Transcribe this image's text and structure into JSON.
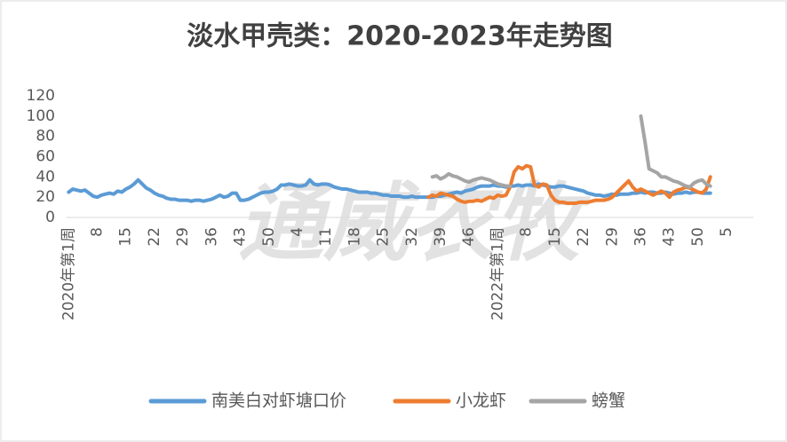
{
  "chart_data": {
    "type": "line",
    "title": "淡水甲壳类：2020-2023年走势图",
    "watermark": "通威农牧",
    "categories": [
      "2020年第1周",
      null,
      null,
      null,
      null,
      null,
      null,
      "8",
      null,
      null,
      null,
      null,
      null,
      null,
      "15",
      null,
      null,
      null,
      null,
      null,
      null,
      "22",
      null,
      null,
      null,
      null,
      null,
      null,
      "29",
      null,
      null,
      null,
      null,
      null,
      null,
      "36",
      null,
      null,
      null,
      null,
      null,
      null,
      "43",
      null,
      null,
      null,
      null,
      null,
      null,
      "50",
      null,
      null,
      null,
      null,
      null,
      null,
      "4",
      null,
      null,
      null,
      null,
      null,
      null,
      "11",
      null,
      null,
      null,
      null,
      null,
      null,
      "18",
      null,
      null,
      null,
      null,
      null,
      null,
      "25",
      null,
      null,
      null,
      null,
      null,
      null,
      "32",
      null,
      null,
      null,
      null,
      null,
      null,
      "39",
      null,
      null,
      null,
      null,
      null,
      null,
      "46",
      null,
      null,
      null,
      null,
      null,
      null,
      "2022年第1周",
      null,
      null,
      null,
      null,
      null,
      null,
      "8",
      null,
      null,
      null,
      null,
      null,
      null,
      "15",
      null,
      null,
      null,
      null,
      null,
      null,
      "22",
      null,
      null,
      null,
      null,
      null,
      null,
      "29",
      null,
      null,
      null,
      null,
      null,
      null,
      "36",
      null,
      null,
      null,
      null,
      null,
      null,
      "43",
      null,
      null,
      null,
      null,
      null,
      null,
      "50",
      null,
      null,
      null,
      null,
      null,
      null,
      "5",
      null,
      null,
      null,
      null,
      null,
      null
    ],
    "series": [
      {
        "name": "南美白对虾塘口价",
        "color": "#5b9bd5",
        "values": [
          25,
          28,
          27,
          26,
          27,
          24,
          21,
          20,
          22,
          23,
          24,
          23,
          26,
          25,
          28,
          30,
          33,
          37,
          33,
          29,
          27,
          24,
          22,
          21,
          19,
          18,
          18,
          17,
          17,
          17,
          16,
          17,
          17,
          16,
          17,
          18,
          20,
          22,
          20,
          21,
          24,
          24,
          17,
          17,
          18,
          20,
          22,
          24,
          25,
          25,
          26,
          28,
          32,
          32,
          33,
          32,
          31,
          31,
          32,
          37,
          33,
          32,
          33,
          33,
          32,
          30,
          29,
          28,
          28,
          27,
          26,
          25,
          25,
          25,
          24,
          24,
          23,
          22,
          22,
          21,
          21,
          21,
          20,
          20,
          21,
          20,
          20,
          20,
          20,
          20,
          21,
          21,
          22,
          23,
          24,
          25,
          24,
          26,
          27,
          28,
          30,
          31,
          31,
          31,
          32,
          31,
          31,
          30,
          31,
          31,
          32,
          31,
          32,
          32,
          31,
          33,
          32,
          31,
          30,
          30,
          31,
          31,
          30,
          29,
          28,
          27,
          26,
          24,
          23,
          22,
          22,
          21,
          22,
          23,
          22,
          23,
          23,
          23,
          24,
          24,
          25,
          24,
          25,
          25,
          24,
          24,
          25,
          24,
          23,
          24,
          24,
          25,
          24,
          25,
          25,
          24,
          24,
          24,
          null,
          null,
          null,
          null,
          null,
          null,
          null,
          null,
          null,
          null
        ]
      },
      {
        "name": "小龙虾",
        "color": "#ed7d31",
        "values": [
          null,
          null,
          null,
          null,
          null,
          null,
          null,
          null,
          null,
          null,
          null,
          null,
          null,
          null,
          null,
          null,
          null,
          null,
          null,
          null,
          null,
          null,
          null,
          null,
          null,
          null,
          null,
          null,
          null,
          null,
          null,
          null,
          null,
          null,
          null,
          null,
          null,
          null,
          null,
          null,
          null,
          null,
          null,
          null,
          null,
          null,
          null,
          null,
          null,
          null,
          null,
          null,
          null,
          null,
          null,
          null,
          null,
          null,
          null,
          null,
          null,
          null,
          null,
          null,
          null,
          null,
          null,
          null,
          null,
          null,
          null,
          null,
          null,
          null,
          null,
          null,
          null,
          null,
          null,
          null,
          null,
          null,
          null,
          null,
          null,
          null,
          null,
          null,
          20,
          22,
          21,
          24,
          23,
          22,
          21,
          18,
          16,
          15,
          16,
          16,
          17,
          16,
          18,
          20,
          19,
          22,
          21,
          22,
          30,
          45,
          50,
          48,
          51,
          50,
          32,
          30,
          33,
          32,
          22,
          17,
          15,
          15,
          14,
          14,
          14,
          15,
          15,
          15,
          16,
          17,
          17,
          17,
          18,
          20,
          24,
          28,
          32,
          36,
          30,
          26,
          28,
          26,
          24,
          22,
          24,
          26,
          24,
          20,
          25,
          27,
          28,
          30,
          29,
          27,
          25,
          24,
          28,
          40,
          null,
          null,
          null,
          null,
          null,
          null,
          null,
          null,
          null,
          null
        ]
      },
      {
        "name": "螃蟹",
        "color": "#a5a5a5",
        "values": [
          null,
          null,
          null,
          null,
          null,
          null,
          null,
          null,
          null,
          null,
          null,
          null,
          null,
          null,
          null,
          null,
          null,
          null,
          null,
          null,
          null,
          null,
          null,
          null,
          null,
          null,
          null,
          null,
          null,
          null,
          null,
          null,
          null,
          null,
          null,
          null,
          null,
          null,
          null,
          null,
          null,
          null,
          null,
          null,
          null,
          null,
          null,
          null,
          null,
          null,
          null,
          null,
          null,
          null,
          null,
          null,
          null,
          null,
          null,
          null,
          null,
          null,
          null,
          null,
          null,
          null,
          null,
          null,
          null,
          null,
          null,
          null,
          null,
          null,
          null,
          null,
          null,
          null,
          null,
          null,
          null,
          null,
          null,
          null,
          null,
          null,
          null,
          null,
          null,
          40,
          41,
          38,
          40,
          43,
          41,
          40,
          38,
          36,
          35,
          37,
          38,
          39,
          38,
          37,
          35,
          33,
          32,
          31,
          31,
          null,
          null,
          null,
          null,
          null,
          null,
          null,
          null,
          null,
          null,
          null,
          null,
          null,
          null,
          null,
          null,
          null,
          null,
          null,
          null,
          null,
          null,
          null,
          null,
          null,
          null,
          null,
          null,
          null,
          null,
          null,
          100,
          75,
          48,
          46,
          44,
          40,
          40,
          38,
          36,
          35,
          33,
          31,
          30,
          34,
          36,
          37,
          33,
          31,
          null,
          null,
          null,
          null,
          null,
          null,
          null,
          null,
          null,
          null
        ]
      }
    ],
    "ylim": [
      0,
      120
    ],
    "yticks": [
      0,
      20,
      40,
      60,
      80,
      100,
      120
    ],
    "grid": false
  }
}
